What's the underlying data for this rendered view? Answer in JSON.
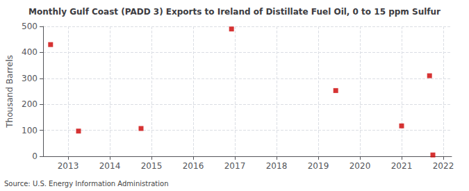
{
  "chart_data": {
    "type": "scatter",
    "title": "Monthly Gulf Coast (PADD 3) Exports to Ireland of Distillate Fuel Oil, 0 to 15 ppm Sulfur",
    "ylabel": "Thousand Barrels",
    "annotation": "Source: U.S. Energy Information Administration",
    "x": [
      2012.58,
      2013.25,
      2014.75,
      2016.92,
      2019.42,
      2021.0,
      2021.67,
      2021.75
    ],
    "values": [
      430,
      97,
      107,
      490,
      253,
      117,
      310,
      5
    ],
    "color": "#cc0000",
    "marker": "square",
    "xlim": [
      2012.4,
      2022.2
    ],
    "xticks": [
      2013,
      2014,
      2015,
      2016,
      2017,
      2018,
      2019,
      2020,
      2021,
      2022
    ],
    "ylim": [
      0,
      500
    ],
    "yticks": [
      0,
      100,
      200,
      300,
      400,
      500
    ],
    "grid": true
  }
}
